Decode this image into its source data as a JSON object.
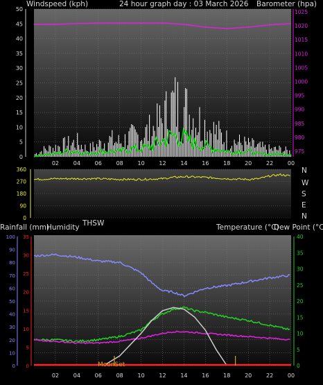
{
  "header": {
    "wind_title": "Windspeed (kph)",
    "graph_title": "24 hour graph day : 03 March 2026",
    "baro_title": "Barometer (hpa)"
  },
  "direction_labels": [
    "N",
    "W",
    "S",
    "E",
    "N"
  ],
  "middle": {
    "thsw_label": "THSW"
  },
  "lower_header": {
    "rain_title": "Rainfall (mm)",
    "humidity_title": "Humidity",
    "temp_title": "Temperature (°C)",
    "dew_title": "Dew Point (°C)"
  },
  "moon_label": "MoonSet",
  "colors": {
    "wind": "#ffffff",
    "gust": "#00dd00",
    "barometer": "#dd22dd",
    "direction": "#eeee22",
    "humidity": "#8888ff",
    "temperature": "#22cc22",
    "dew_point": "#dd22dd",
    "solar": "#cccccc",
    "rain": "#ff2222",
    "moon": "#d0a020"
  },
  "chart_data": [
    {
      "type": "line",
      "name": "wind-barometer",
      "x_ticks": [
        "02",
        "04",
        "06",
        "08",
        "10",
        "12",
        "14",
        "16",
        "18",
        "20",
        "22",
        "00"
      ],
      "y_left_ticks": [
        0,
        5,
        10,
        15,
        20,
        25,
        30,
        35,
        40,
        45,
        50
      ],
      "ylim_left": [
        0,
        50
      ],
      "y_right_ticks": [
        975,
        980,
        985,
        990,
        995,
        1000,
        1005,
        1010,
        1015,
        1020,
        1025
      ],
      "ylim_right": [
        973,
        1026
      ],
      "series": [
        {
          "axis": "left",
          "x": [
            0,
            1,
            2,
            3,
            4,
            5,
            6,
            7,
            8,
            9,
            10,
            11,
            12,
            13,
            14,
            15,
            16,
            17,
            18,
            19,
            20,
            21,
            22,
            23,
            24
          ],
          "y": [
            1,
            3,
            4,
            5,
            6,
            3,
            5,
            7,
            6,
            8,
            9,
            11,
            15,
            22,
            20,
            16,
            13,
            10,
            7,
            6,
            5,
            4,
            3,
            3,
            2
          ]
        },
        {
          "axis": "left",
          "x": [
            0,
            1,
            2,
            3,
            4,
            5,
            6,
            7,
            8,
            9,
            10,
            11,
            12,
            13,
            14,
            15,
            16,
            17,
            18,
            19,
            20,
            21,
            22,
            23,
            24
          ],
          "y": [
            0,
            1,
            1,
            2,
            2,
            1,
            2,
            2,
            2,
            3,
            3,
            4,
            6,
            8,
            7,
            5,
            4,
            3,
            2,
            2,
            2,
            1,
            1,
            1,
            1
          ]
        },
        {
          "axis": "right",
          "x": [
            0,
            2,
            4,
            6,
            8,
            10,
            12,
            14,
            16,
            18,
            20,
            22,
            24
          ],
          "y": [
            1020.5,
            1020.5,
            1020.8,
            1021,
            1021,
            1021,
            1021,
            1020.5,
            1019.5,
            1019,
            1019.5,
            1020.3,
            1020.8
          ]
        }
      ]
    },
    {
      "type": "line",
      "name": "wind-direction",
      "y_ticks": [
        360,
        270,
        180,
        90,
        0
      ],
      "ylim": [
        0,
        360
      ],
      "series": [
        {
          "x": [
            0,
            2,
            4,
            6,
            8,
            10,
            12,
            13,
            14,
            16,
            18,
            20,
            21,
            22,
            23,
            24
          ],
          "y": [
            285,
            290,
            290,
            290,
            285,
            285,
            290,
            300,
            305,
            300,
            290,
            285,
            290,
            310,
            320,
            310
          ]
        }
      ]
    },
    {
      "type": "line",
      "name": "temperature-humidity",
      "x_ticks": [
        "02",
        "04",
        "06",
        "08",
        "10",
        "12",
        "14",
        "16",
        "18",
        "20",
        "22",
        "00"
      ],
      "humidity_ticks": [
        0,
        10,
        20,
        30,
        40,
        50,
        60,
        70,
        80,
        90,
        100
      ],
      "ylim_humidity": [
        0,
        100
      ],
      "rain_ticks": [
        0,
        5,
        10,
        15,
        20,
        25,
        30,
        35
      ],
      "ylim_rain": [
        0,
        35
      ],
      "temp_ticks": [
        0,
        5,
        10,
        15,
        20,
        25,
        30,
        35,
        40
      ],
      "ylim_temp": [
        0,
        40
      ],
      "series": [
        {
          "axis": "humidity",
          "x": [
            0,
            2,
            4,
            6,
            8,
            10,
            11,
            12,
            13,
            14,
            15,
            16,
            18,
            20,
            22,
            24
          ],
          "y": [
            85,
            86,
            84,
            81,
            80,
            72,
            64,
            58,
            57,
            54,
            57,
            60,
            62,
            65,
            68,
            70
          ]
        },
        {
          "axis": "temp",
          "x": [
            0,
            2,
            4,
            6,
            8,
            10,
            11,
            12,
            13,
            14,
            15,
            16,
            18,
            20,
            22,
            24
          ],
          "y": [
            8,
            8,
            7.5,
            8,
            9,
            11,
            14,
            16,
            17.5,
            18,
            17,
            16.5,
            15,
            14,
            12.5,
            11
          ]
        },
        {
          "axis": "temp",
          "x": [
            0,
            2,
            4,
            6,
            8,
            10,
            12,
            13,
            14,
            16,
            18,
            20,
            22,
            24
          ],
          "y": [
            8,
            7.5,
            7,
            7,
            7.5,
            8.5,
            10,
            10.5,
            10.5,
            10,
            9.5,
            9,
            8.5,
            8
          ]
        },
        {
          "axis": "temp",
          "x": [
            6.5,
            8,
            9,
            10,
            11,
            12,
            13,
            14,
            15,
            16,
            17,
            18
          ],
          "y": [
            0,
            3,
            6.5,
            10,
            14,
            17,
            18,
            17.5,
            15,
            11,
            5,
            0
          ]
        },
        {
          "axis": "rain",
          "x": [
            0,
            24
          ],
          "y": [
            0,
            0
          ]
        }
      ]
    }
  ]
}
